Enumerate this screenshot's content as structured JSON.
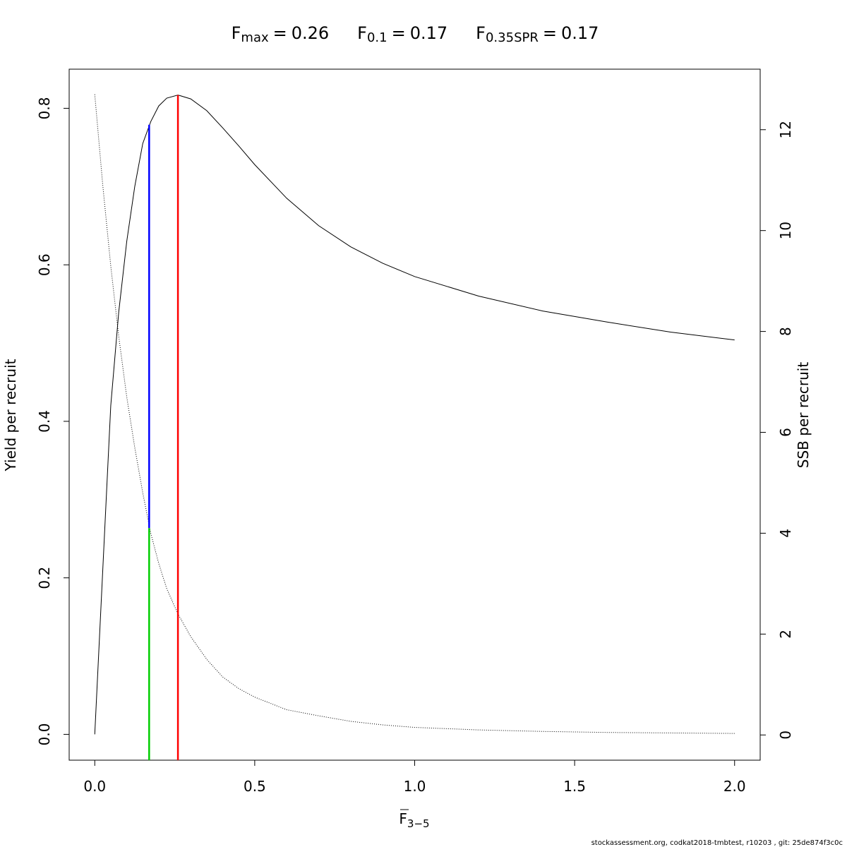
{
  "chart_data": {
    "type": "line",
    "title": [
      {
        "name": "F",
        "sub": "max",
        "value": 0.26
      },
      {
        "name": "F",
        "sub": "0.1",
        "value": 0.17
      },
      {
        "name": "F",
        "sub": "0.35SPR",
        "value": 0.17
      }
    ],
    "title_separator": "=",
    "xlabel": "F",
    "xlabel_sub": "3−5",
    "ylabel": "Yield per recruit",
    "y2label": "SSB per recruit",
    "footnote": "stockassessment.org, codkat2018-tmbtest, r10203 , git: 25de874f3c0c",
    "x": [
      0,
      0.025,
      0.05,
      0.075,
      0.1,
      0.125,
      0.15,
      0.175,
      0.2,
      0.225,
      0.26,
      0.3,
      0.35,
      0.4,
      0.45,
      0.5,
      0.6,
      0.7,
      0.8,
      0.9,
      1.0,
      1.2,
      1.4,
      1.6,
      1.8,
      2.0
    ],
    "series": [
      {
        "name": "Yield per recruit",
        "color": "#000000",
        "dash": "solid",
        "axis": "y",
        "values": [
          0,
          0.21,
          0.42,
          0.54,
          0.63,
          0.7,
          0.755,
          0.783,
          0.803,
          0.813,
          0.817,
          0.812,
          0.797,
          0.775,
          0.752,
          0.728,
          0.685,
          0.65,
          0.623,
          0.602,
          0.585,
          0.56,
          0.541,
          0.527,
          0.514,
          0.504
        ]
      },
      {
        "name": "SSB per recruit",
        "color": "#000000",
        "dash": "dotted",
        "axis": "y2",
        "values": [
          12.7,
          10.9,
          9.3,
          7.9,
          6.7,
          5.7,
          4.8,
          4.0,
          3.4,
          2.9,
          2.4,
          1.95,
          1.5,
          1.15,
          0.92,
          0.75,
          0.5,
          0.38,
          0.27,
          0.2,
          0.15,
          0.1,
          0.07,
          0.05,
          0.04,
          0.03
        ]
      }
    ],
    "reference_lines": [
      {
        "x": 0.26,
        "color": "#ff0000",
        "y_top": 0.817,
        "y_top_axis": "y"
      },
      {
        "x": 0.17,
        "color": "#0000ff",
        "y_bottom": 4.1,
        "y_bottom_axis": "y2",
        "y_top": 0.779,
        "y_top_axis": "y"
      },
      {
        "x": 0.17,
        "color": "#00cd00",
        "y_top": 4.1,
        "y_top_axis": "y2"
      }
    ],
    "xlim": [
      -0.08,
      2.08
    ],
    "ylim": [
      -0.033,
      0.85
    ],
    "y2lim": [
      -0.5,
      13.2
    ],
    "xticks": [
      {
        "value": 0,
        "label": "0.0"
      },
      {
        "value": 0.5,
        "label": "0.5"
      },
      {
        "value": 1,
        "label": "1.0"
      },
      {
        "value": 1.5,
        "label": "1.5"
      },
      {
        "value": 2,
        "label": "2.0"
      }
    ],
    "yticks": [
      {
        "value": 0,
        "label": "0.0"
      },
      {
        "value": 0.2,
        "label": "0.2"
      },
      {
        "value": 0.4,
        "label": "0.4"
      },
      {
        "value": 0.6,
        "label": "0.6"
      },
      {
        "value": 0.8,
        "label": "0.8"
      }
    ],
    "y2ticks": [
      0,
      2,
      4,
      6,
      8,
      10,
      12
    ],
    "grid": false
  }
}
